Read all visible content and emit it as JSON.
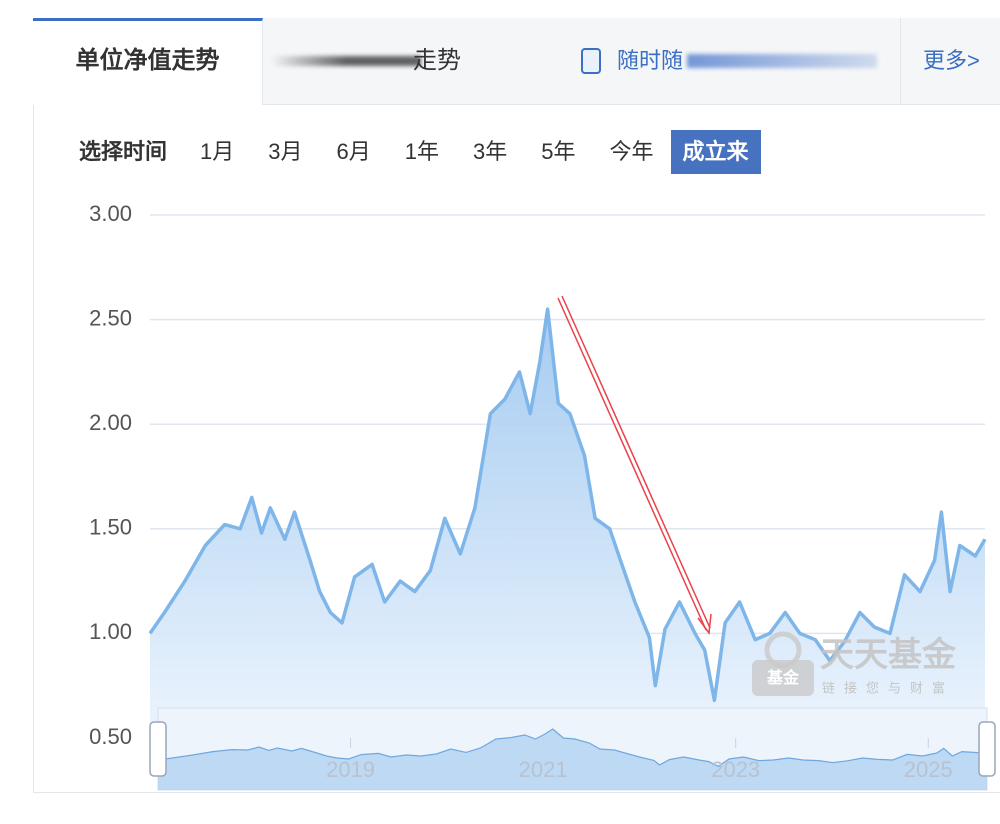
{
  "tabs": [
    {
      "label": "单位净值走势"
    },
    {
      "label": "走势"
    },
    {
      "label": "随时随"
    },
    {
      "label": "更多>"
    }
  ],
  "range_selector": {
    "label": "选择时间",
    "options": [
      "1月",
      "3月",
      "6月",
      "1年",
      "3年",
      "5年",
      "今年",
      "成立来"
    ],
    "active": 7
  },
  "watermark": {
    "title": "天天基金",
    "subtitle": "链接您与财富",
    "badge": "基金"
  },
  "chart_data": {
    "type": "line",
    "x": [
      2017.0,
      2017.15,
      2017.36,
      2017.57,
      2017.77,
      2017.93,
      2018.05,
      2018.15,
      2018.24,
      2018.39,
      2018.49,
      2018.65,
      2018.75,
      2018.86,
      2018.98,
      2019.11,
      2019.29,
      2019.42,
      2019.58,
      2019.73,
      2019.89,
      2020.04,
      2020.2,
      2020.35,
      2020.51,
      2020.66,
      2020.81,
      2020.92,
      2021.02,
      2021.1,
      2021.21,
      2021.33,
      2021.48,
      2021.59,
      2021.74,
      2021.85,
      2022.0,
      2022.15,
      2022.21,
      2022.31,
      2022.46,
      2022.62,
      2022.72,
      2022.82,
      2022.93,
      2023.08,
      2023.24,
      2023.39,
      2023.55,
      2023.7,
      2023.86,
      2024.01,
      2024.16,
      2024.32,
      2024.47,
      2024.63,
      2024.78,
      2024.94,
      2025.09,
      2025.16,
      2025.25,
      2025.35,
      2025.51,
      2025.61
    ],
    "values": [
      1.0,
      1.1,
      1.25,
      1.42,
      1.52,
      1.5,
      1.65,
      1.48,
      1.6,
      1.45,
      1.58,
      1.35,
      1.2,
      1.1,
      1.05,
      1.27,
      1.33,
      1.15,
      1.25,
      1.2,
      1.3,
      1.55,
      1.38,
      1.6,
      2.05,
      2.12,
      2.25,
      2.05,
      2.3,
      2.55,
      2.1,
      2.05,
      1.85,
      1.55,
      1.5,
      1.35,
      1.15,
      0.98,
      0.75,
      1.02,
      1.15,
      1.0,
      0.92,
      0.68,
      1.05,
      1.15,
      0.97,
      1.0,
      1.1,
      1.0,
      0.97,
      0.87,
      0.96,
      1.1,
      1.03,
      1.0,
      1.28,
      1.2,
      1.35,
      1.58,
      1.2,
      1.42,
      1.37,
      1.45
    ],
    "color": "#7eb6ea",
    "xlim": [
      2017,
      2025.61
    ],
    "xticks": [
      2019,
      2021,
      2023,
      2025
    ],
    "ylim": [
      0.5,
      3
    ],
    "yticks": [
      {
        "value": 0.5,
        "label": "0.50"
      },
      {
        "value": 1,
        "label": "1.00"
      },
      {
        "value": 1.5,
        "label": "1.50"
      },
      {
        "value": 2,
        "label": "2.00"
      },
      {
        "value": 2.5,
        "label": "2.50"
      },
      {
        "value": 3,
        "label": "3.00"
      }
    ],
    "grid": true
  }
}
